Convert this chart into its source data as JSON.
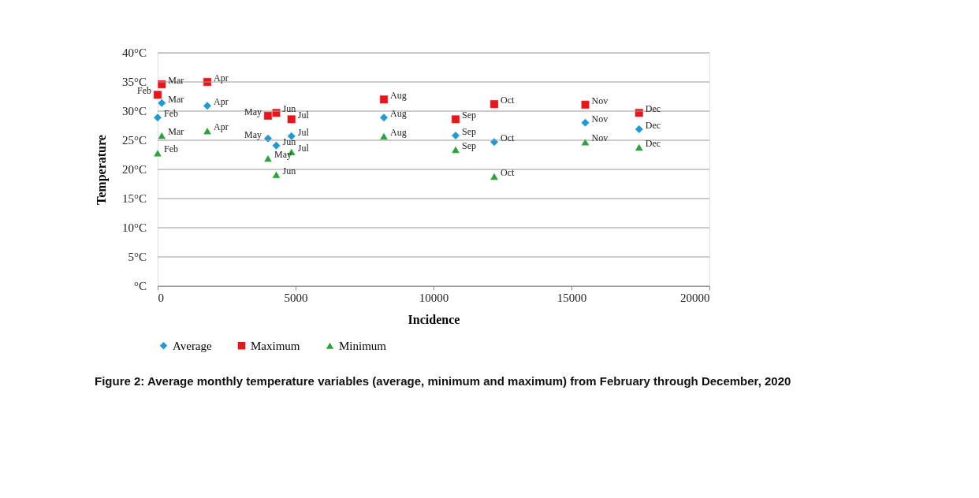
{
  "chart_data": {
    "type": "scatter",
    "xlabel": "Incidence",
    "ylabel": "Temperature",
    "xlim": [
      0,
      20000
    ],
    "xticks": [
      0,
      5000,
      10000,
      15000,
      20000
    ],
    "ylim": [
      0,
      40
    ],
    "yticks": [
      {
        "value": 0,
        "label": "°C"
      },
      {
        "value": 5,
        "label": "5°C"
      },
      {
        "value": 10,
        "label": "10°C"
      },
      {
        "value": 15,
        "label": "15°C"
      },
      {
        "value": 20,
        "label": "20°C"
      },
      {
        "value": 25,
        "label": "25°C"
      },
      {
        "value": 30,
        "label": "30°C"
      },
      {
        "value": 35,
        "label": "35°C"
      },
      {
        "value": 40,
        "label": "40°C"
      }
    ],
    "grid": "y",
    "legend": "bottom",
    "series": [
      {
        "name": "Average",
        "color": "#1f9ad6",
        "marker": "diamond",
        "x": [
          0,
          150,
          1800,
          4000,
          4300,
          4850,
          8200,
          10800,
          12200,
          15500,
          17450
        ],
        "values": [
          28.9,
          31.4,
          30.9,
          25.3,
          24.1,
          25.7,
          28.9,
          25.8,
          24.7,
          28.0,
          26.9
        ]
      },
      {
        "name": "Maximum",
        "color": "#e8161b",
        "marker": "square",
        "x": [
          0,
          150,
          1800,
          4000,
          4300,
          4850,
          8200,
          10800,
          12200,
          15500,
          17450
        ],
        "values": [
          32.8,
          34.6,
          35.0,
          29.2,
          29.7,
          28.6,
          32.0,
          28.6,
          31.2,
          31.1,
          29.7
        ]
      },
      {
        "name": "Minimum",
        "color": "#2aa33a",
        "marker": "triangle",
        "x": [
          0,
          150,
          1800,
          4000,
          4300,
          4850,
          8200,
          10800,
          12200,
          15500,
          17450
        ],
        "values": [
          22.8,
          25.8,
          26.6,
          21.9,
          19.1,
          23.0,
          25.7,
          23.4,
          18.8,
          24.7,
          23.8
        ]
      }
    ],
    "annotations": [
      {
        "text": "Feb",
        "x": 0,
        "y": 28.9
      },
      {
        "text": "Mar",
        "x": 150,
        "y": 31.4
      },
      {
        "text": "Apr",
        "x": 1800,
        "y": 30.9
      },
      {
        "text": "May",
        "x": 4000,
        "y": 25.3
      },
      {
        "text": "Jun",
        "x": 4300,
        "y": 24.1
      },
      {
        "text": "Jul",
        "x": 4850,
        "y": 25.7
      },
      {
        "text": "Aug",
        "x": 8200,
        "y": 28.9
      },
      {
        "text": "Sep",
        "x": 10800,
        "y": 25.8
      },
      {
        "text": "Oct",
        "x": 12200,
        "y": 24.7
      },
      {
        "text": "Nov",
        "x": 15500,
        "y": 28.0
      },
      {
        "text": "Dec",
        "x": 17450,
        "y": 26.9
      },
      {
        "text": "Feb",
        "x": 0,
        "y": 32.8
      },
      {
        "text": "Mar",
        "x": 150,
        "y": 34.6
      },
      {
        "text": "Apr",
        "x": 1800,
        "y": 35.0
      },
      {
        "text": "May",
        "x": 4000,
        "y": 29.2
      },
      {
        "text": "Jun",
        "x": 4300,
        "y": 29.7
      },
      {
        "text": "Jul",
        "x": 4850,
        "y": 28.6
      },
      {
        "text": "Aug",
        "x": 8200,
        "y": 32.0
      },
      {
        "text": "Sep",
        "x": 10800,
        "y": 28.6
      },
      {
        "text": "Oct",
        "x": 12200,
        "y": 31.2
      },
      {
        "text": "Nov",
        "x": 15500,
        "y": 31.1
      },
      {
        "text": "Dec",
        "x": 17450,
        "y": 29.7
      },
      {
        "text": "Feb",
        "x": 0,
        "y": 22.8
      },
      {
        "text": "Mar",
        "x": 150,
        "y": 25.8
      },
      {
        "text": "Apr",
        "x": 1800,
        "y": 26.6
      },
      {
        "text": "May",
        "x": 4000,
        "y": 21.9
      },
      {
        "text": "Jun",
        "x": 4300,
        "y": 19.1
      },
      {
        "text": "Jul",
        "x": 4850,
        "y": 23.0
      },
      {
        "text": "Aug",
        "x": 8200,
        "y": 25.7
      },
      {
        "text": "Sep",
        "x": 10800,
        "y": 23.4
      },
      {
        "text": "Oct",
        "x": 12200,
        "y": 18.8
      },
      {
        "text": "Nov",
        "x": 15500,
        "y": 24.7
      },
      {
        "text": "Dec",
        "x": 17450,
        "y": 23.8
      },
      "Figure 2: Average monthly temperature variables (average, minimum and maximum) from February through December, 2020"
    ]
  }
}
